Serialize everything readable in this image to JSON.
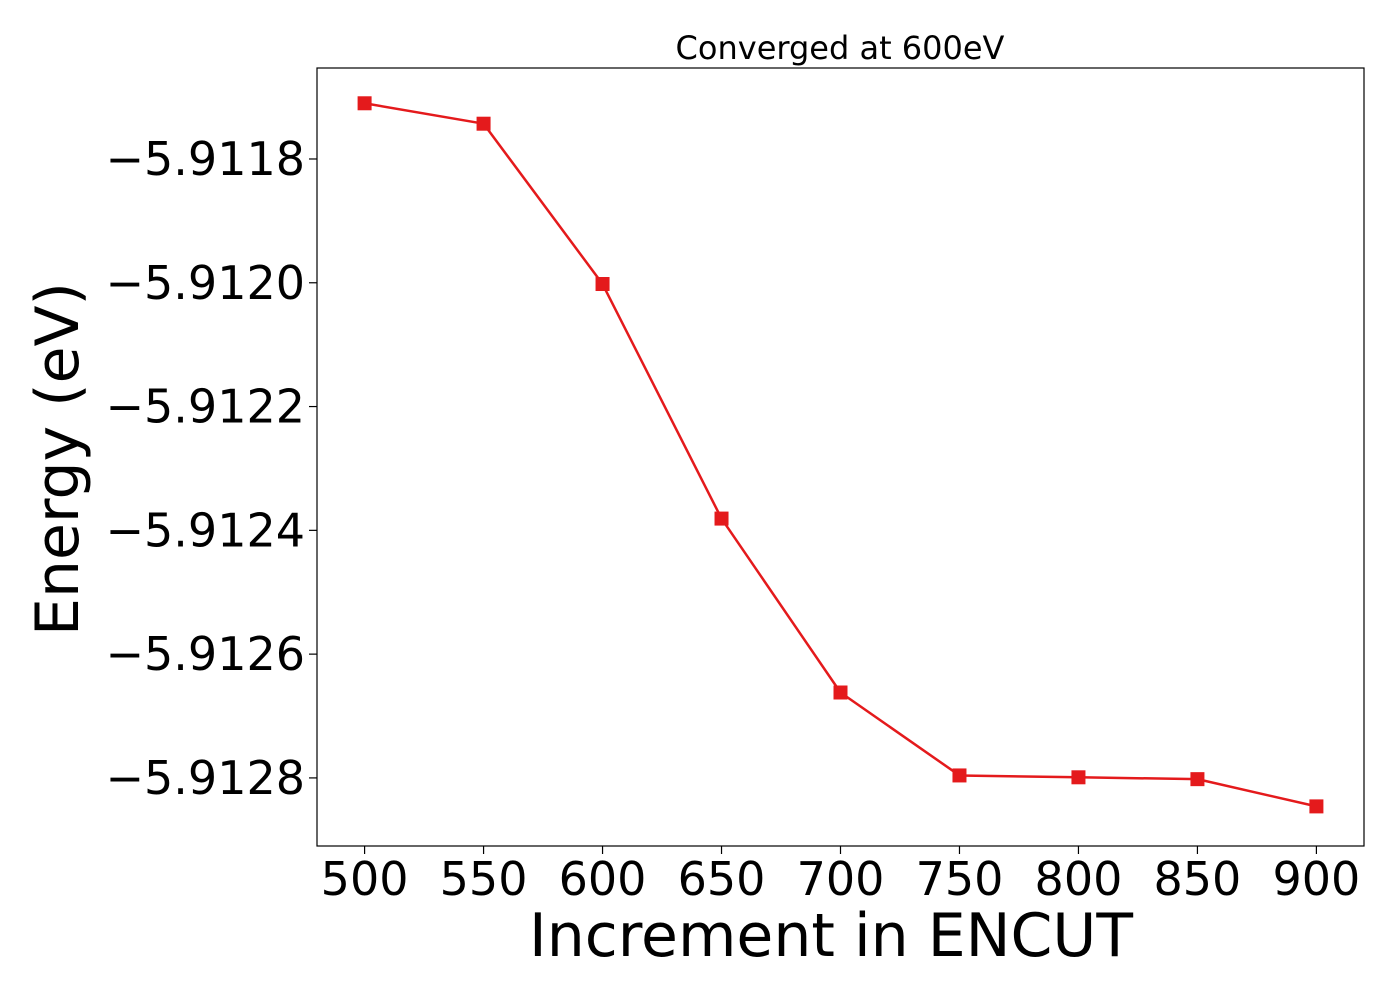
{
  "chart_data": {
    "type": "line",
    "title": "Converged at 600eV",
    "xlabel": "Increment in ENCUT",
    "ylabel": "Energy (eV)",
    "x": [
      500,
      550,
      600,
      650,
      700,
      750,
      800,
      850,
      900
    ],
    "series": [
      {
        "values": [
          -5.91171,
          -5.911743,
          -5.912002,
          -5.912381,
          -5.912662,
          -5.912796,
          -5.912799,
          -5.912802,
          -5.912846
        ],
        "color": "#e41a1c",
        "marker": "square"
      }
    ],
    "xlim": [
      480,
      920
    ],
    "ylim": [
      -5.91291,
      -5.911653
    ],
    "xticks": [
      500,
      550,
      600,
      650,
      700,
      750,
      800,
      850,
      900
    ],
    "xtick_labels": [
      "500",
      "550",
      "600",
      "650",
      "700",
      "750",
      "800",
      "850",
      "900"
    ],
    "yticks": [
      -5.9118,
      -5.912,
      -5.9122,
      -5.9124,
      -5.9126,
      -5.9128
    ],
    "ytick_labels": [
      "−5.9118",
      "−5.9120",
      "−5.9122",
      "−5.9124",
      "−5.9126",
      "−5.9128"
    ],
    "grid": false,
    "legend": "none"
  }
}
